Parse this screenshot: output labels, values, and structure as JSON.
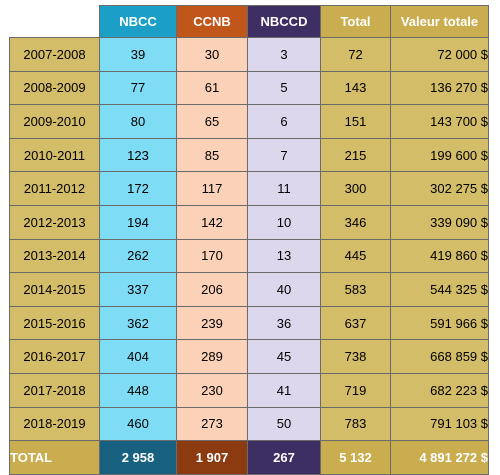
{
  "table": {
    "headers": {
      "blank": "",
      "nbcc": "NBCC",
      "ccnb": "CCNB",
      "nbccd": "NBCCD",
      "total": "Total",
      "valeur": "Valeur totale"
    },
    "rows": [
      {
        "year": "2007-2008",
        "nbcc": "39",
        "ccnb": "30",
        "nbccd": "3",
        "total": "72",
        "valeur": "72 000 $"
      },
      {
        "year": "2008-2009",
        "nbcc": "77",
        "ccnb": "61",
        "nbccd": "5",
        "total": "143",
        "valeur": "136 270 $"
      },
      {
        "year": "2009-2010",
        "nbcc": "80",
        "ccnb": "65",
        "nbccd": "6",
        "total": "151",
        "valeur": "143 700 $"
      },
      {
        "year": "2010-2011",
        "nbcc": "123",
        "ccnb": "85",
        "nbccd": "7",
        "total": "215",
        "valeur": "199 600 $"
      },
      {
        "year": "2011-2012",
        "nbcc": "172",
        "ccnb": "117",
        "nbccd": "11",
        "total": "300",
        "valeur": "302 275 $"
      },
      {
        "year": "2012-2013",
        "nbcc": "194",
        "ccnb": "142",
        "nbccd": "10",
        "total": "346",
        "valeur": "339 090 $"
      },
      {
        "year": "2013-2014",
        "nbcc": "262",
        "ccnb": "170",
        "nbccd": "13",
        "total": "445",
        "valeur": "419 860 $"
      },
      {
        "year": "2014-2015",
        "nbcc": "337",
        "ccnb": "206",
        "nbccd": "40",
        "total": "583",
        "valeur": "544 325 $"
      },
      {
        "year": "2015-2016",
        "nbcc": "362",
        "ccnb": "239",
        "nbccd": "36",
        "total": "637",
        "valeur": "591 966 $"
      },
      {
        "year": "2016-2017",
        "nbcc": "404",
        "ccnb": "289",
        "nbccd": "45",
        "total": "738",
        "valeur": "668 859 $"
      },
      {
        "year": "2017-2018",
        "nbcc": "448",
        "ccnb": "230",
        "nbccd": "41",
        "total": "719",
        "valeur": "682 223 $"
      },
      {
        "year": "2018-2019",
        "nbcc": "460",
        "ccnb": "273",
        "nbccd": "50",
        "total": "783",
        "valeur": "791 103 $"
      }
    ],
    "totals": {
      "label": "TOTAL",
      "nbcc": "2 958",
      "ccnb": "1 907",
      "nbccd": "267",
      "total": "5 132",
      "valeur": "4 891 272 $"
    }
  },
  "colors": {
    "nbcc_header": "#1b9fc6",
    "nbcc_cell": "#7fdcf5",
    "nbcc_total": "#17607f",
    "ccnb_header": "#c1561a",
    "ccnb_cell": "#fbd2b8",
    "ccnb_total": "#8c3a0f",
    "nbccd_header": "#3d2e63",
    "nbccd_cell": "#dcd7ec",
    "gold_header": "#c9ad4e",
    "gold_cell": "#d4bd68"
  }
}
